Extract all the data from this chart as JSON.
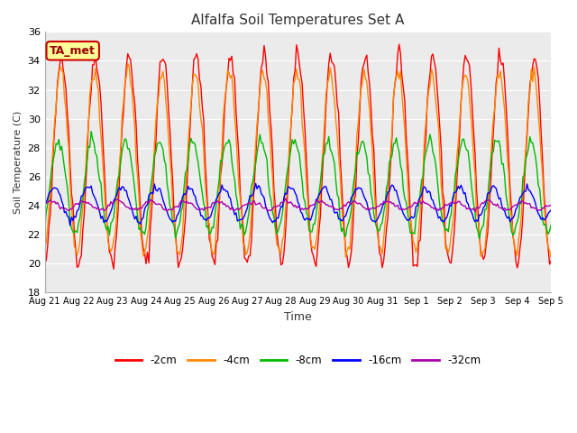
{
  "title": "Alfalfa Soil Temperatures Set A",
  "xlabel": "Time",
  "ylabel": "Soil Temperature (C)",
  "annotation": "TA_met",
  "ylim": [
    18,
    36
  ],
  "yticks": [
    18,
    20,
    22,
    24,
    26,
    28,
    30,
    32,
    34,
    36
  ],
  "colors": {
    "-2cm": "#ff0000",
    "-4cm": "#ff8800",
    "-8cm": "#00bb00",
    "-16cm": "#0000ff",
    "-32cm": "#aa00aa"
  },
  "legend_labels": [
    "-2cm",
    "-4cm",
    "-8cm",
    "-16cm",
    "-32cm"
  ],
  "xtick_labels": [
    "Aug 21",
    "Aug 22",
    "Aug 23",
    "Aug 24",
    "Aug 25",
    "Aug 26",
    "Aug 27",
    "Aug 28",
    "Aug 29",
    "Aug 30",
    "Aug 31",
    "Sep 1",
    "Sep 2",
    "Sep 3",
    "Sep 4",
    "Sep 5"
  ],
  "fig_bg_color": "#ffffff",
  "plot_bg_color": "#ebebeb",
  "grid_color": "#ffffff",
  "title_fontsize": 11,
  "annotation_bg": "#ffff99",
  "annotation_border": "#cc0000",
  "annotation_text_color": "#990000"
}
